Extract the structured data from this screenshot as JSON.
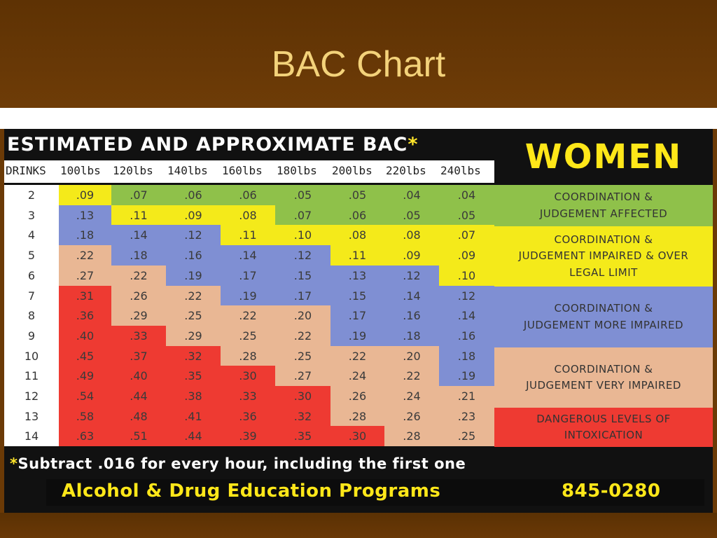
{
  "slide": {
    "title": "BAC Chart"
  },
  "card": {
    "title": "ESTIMATED AND APPROXIMATE BAC",
    "title_star": "*",
    "gender": "WOMEN"
  },
  "table": {
    "header": [
      "DRINKS",
      "100lbs",
      "120lbs",
      "140lbs",
      "160lbs",
      "180lbs",
      "200lbs",
      "220lbs",
      "240lbs"
    ],
    "rows": [
      {
        "drinks": "2",
        "values": [
          ".09",
          ".07",
          ".06",
          ".06",
          ".05",
          ".05",
          ".04",
          ".04"
        ],
        "levels": [
          2,
          1,
          1,
          1,
          1,
          1,
          1,
          1
        ]
      },
      {
        "drinks": "3",
        "values": [
          ".13",
          ".11",
          ".09",
          ".08",
          ".07",
          ".06",
          ".05",
          ".05"
        ],
        "levels": [
          3,
          2,
          2,
          2,
          1,
          1,
          1,
          1
        ]
      },
      {
        "drinks": "4",
        "values": [
          ".18",
          ".14",
          ".12",
          ".11",
          ".10",
          ".08",
          ".08",
          ".07"
        ],
        "levels": [
          3,
          3,
          3,
          2,
          2,
          2,
          2,
          2
        ]
      },
      {
        "drinks": "5",
        "values": [
          ".22",
          ".18",
          ".16",
          ".14",
          ".12",
          ".11",
          ".09",
          ".09"
        ],
        "levels": [
          4,
          3,
          3,
          3,
          3,
          2,
          2,
          2
        ]
      },
      {
        "drinks": "6",
        "values": [
          ".27",
          ".22",
          ".19",
          ".17",
          ".15",
          ".13",
          ".12",
          ".10"
        ],
        "levels": [
          4,
          4,
          3,
          3,
          3,
          3,
          3,
          2
        ]
      },
      {
        "drinks": "7",
        "values": [
          ".31",
          ".26",
          ".22",
          ".19",
          ".17",
          ".15",
          ".14",
          ".12"
        ],
        "levels": [
          5,
          4,
          4,
          3,
          3,
          3,
          3,
          3
        ]
      },
      {
        "drinks": "8",
        "values": [
          ".36",
          ".29",
          ".25",
          ".22",
          ".20",
          ".17",
          ".16",
          ".14"
        ],
        "levels": [
          5,
          4,
          4,
          4,
          4,
          3,
          3,
          3
        ]
      },
      {
        "drinks": "9",
        "values": [
          ".40",
          ".33",
          ".29",
          ".25",
          ".22",
          ".19",
          ".18",
          ".16"
        ],
        "levels": [
          5,
          5,
          4,
          4,
          4,
          3,
          3,
          3
        ]
      },
      {
        "drinks": "10",
        "values": [
          ".45",
          ".37",
          ".32",
          ".28",
          ".25",
          ".22",
          ".20",
          ".18"
        ],
        "levels": [
          5,
          5,
          5,
          4,
          4,
          4,
          4,
          3
        ]
      },
      {
        "drinks": "11",
        "values": [
          ".49",
          ".40",
          ".35",
          ".30",
          ".27",
          ".24",
          ".22",
          ".19"
        ],
        "levels": [
          5,
          5,
          5,
          5,
          4,
          4,
          4,
          3
        ]
      },
      {
        "drinks": "12",
        "values": [
          ".54",
          ".44",
          ".38",
          ".33",
          ".30",
          ".26",
          ".24",
          ".21"
        ],
        "levels": [
          5,
          5,
          5,
          5,
          5,
          4,
          4,
          4
        ]
      },
      {
        "drinks": "13",
        "values": [
          ".58",
          ".48",
          ".41",
          ".36",
          ".32",
          ".28",
          ".26",
          ".23"
        ],
        "levels": [
          5,
          5,
          5,
          5,
          5,
          4,
          4,
          4
        ]
      },
      {
        "drinks": "14",
        "values": [
          ".63",
          ".51",
          ".44",
          ".39",
          ".35",
          ".30",
          ".28",
          ".25"
        ],
        "levels": [
          5,
          5,
          5,
          5,
          5,
          5,
          4,
          4
        ]
      }
    ]
  },
  "levels": [
    {
      "id": 1,
      "color": "#8fc14a",
      "lines": [
        "COORDINATION &",
        "JUDGEMENT AFFECTED"
      ]
    },
    {
      "id": 2,
      "color": "#f4ea1a",
      "lines": [
        "COORDINATION &",
        "JUDGEMENT IMPAIRED & OVER",
        "LEGAL LIMIT"
      ]
    },
    {
      "id": 3,
      "color": "#7f8fd3",
      "lines": [
        "COORDINATION &",
        "JUDGEMENT MORE IMPAIRED"
      ]
    },
    {
      "id": 4,
      "color": "#e9b794",
      "lines": [
        "COORDINATION &",
        "JUDGEMENT VERY IMPAIRED"
      ]
    },
    {
      "id": 5,
      "color": "#ee3a32",
      "lines": [
        "DANGEROUS LEVELS OF",
        "INTOXICATION"
      ]
    }
  ],
  "footnote": {
    "star": "*",
    "text": "Subtract .016 for every hour, including the first one"
  },
  "program": {
    "name": "Alcohol & Drug Education Programs",
    "phone": "845-0280"
  }
}
